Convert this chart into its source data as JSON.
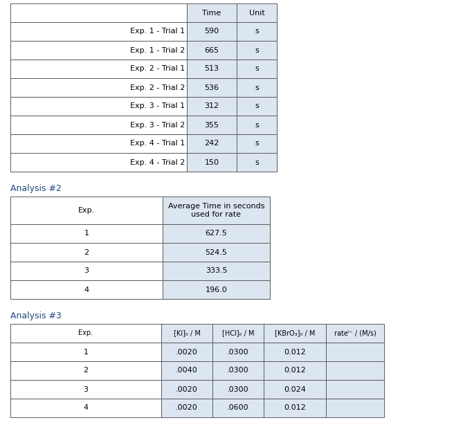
{
  "table1": {
    "header": [
      "",
      "Time",
      "Unit"
    ],
    "rows": [
      [
        "Exp. 1 - Trial 1",
        "590",
        "s"
      ],
      [
        "Exp. 1 - Trial 2",
        "665",
        "s"
      ],
      [
        "Exp. 2 - Trial 1",
        "513",
        "s"
      ],
      [
        "Exp. 2 - Trial 2",
        "536",
        "s"
      ],
      [
        "Exp. 3 - Trial 1",
        "312",
        "s"
      ],
      [
        "Exp. 3 - Trial 2",
        "355",
        "s"
      ],
      [
        "Exp. 4 - Trial 1",
        "242",
        "s"
      ],
      [
        "Exp. 4 - Trial 2",
        "150",
        "s"
      ]
    ]
  },
  "table2_label": "Analysis #2",
  "table2": {
    "header_line1": "Exp.",
    "header_line2": "Average Time in seconds\nused for rate",
    "rows": [
      [
        "1",
        "627.5"
      ],
      [
        "2",
        "524.5"
      ],
      [
        "3",
        "333.5"
      ],
      [
        "4",
        "196.0"
      ]
    ]
  },
  "table3_label": "Analysis #3",
  "table3": {
    "header": [
      "Exp.",
      "[KI]₀ / M",
      "[HCl]₀ / M",
      "[KBrO₃]₀ / M",
      "rateᴵ⁻ / (M/s)"
    ],
    "rows": [
      [
        "1",
        ".0020",
        ".0300",
        "0.012",
        ""
      ],
      [
        "2",
        ".0040",
        ".0300",
        "0.012",
        ""
      ],
      [
        "3",
        ".0020",
        ".0300",
        "0.024",
        ""
      ],
      [
        "4",
        ".0020",
        ".0600",
        "0.012",
        ""
      ]
    ]
  },
  "header_color": "#dce6f1",
  "row_color": "#ffffff",
  "edge_color": "#5a5a5a",
  "text_color": "#000000",
  "label_color": "#1f497d",
  "fontsize": 8,
  "label_fontsize": 9
}
